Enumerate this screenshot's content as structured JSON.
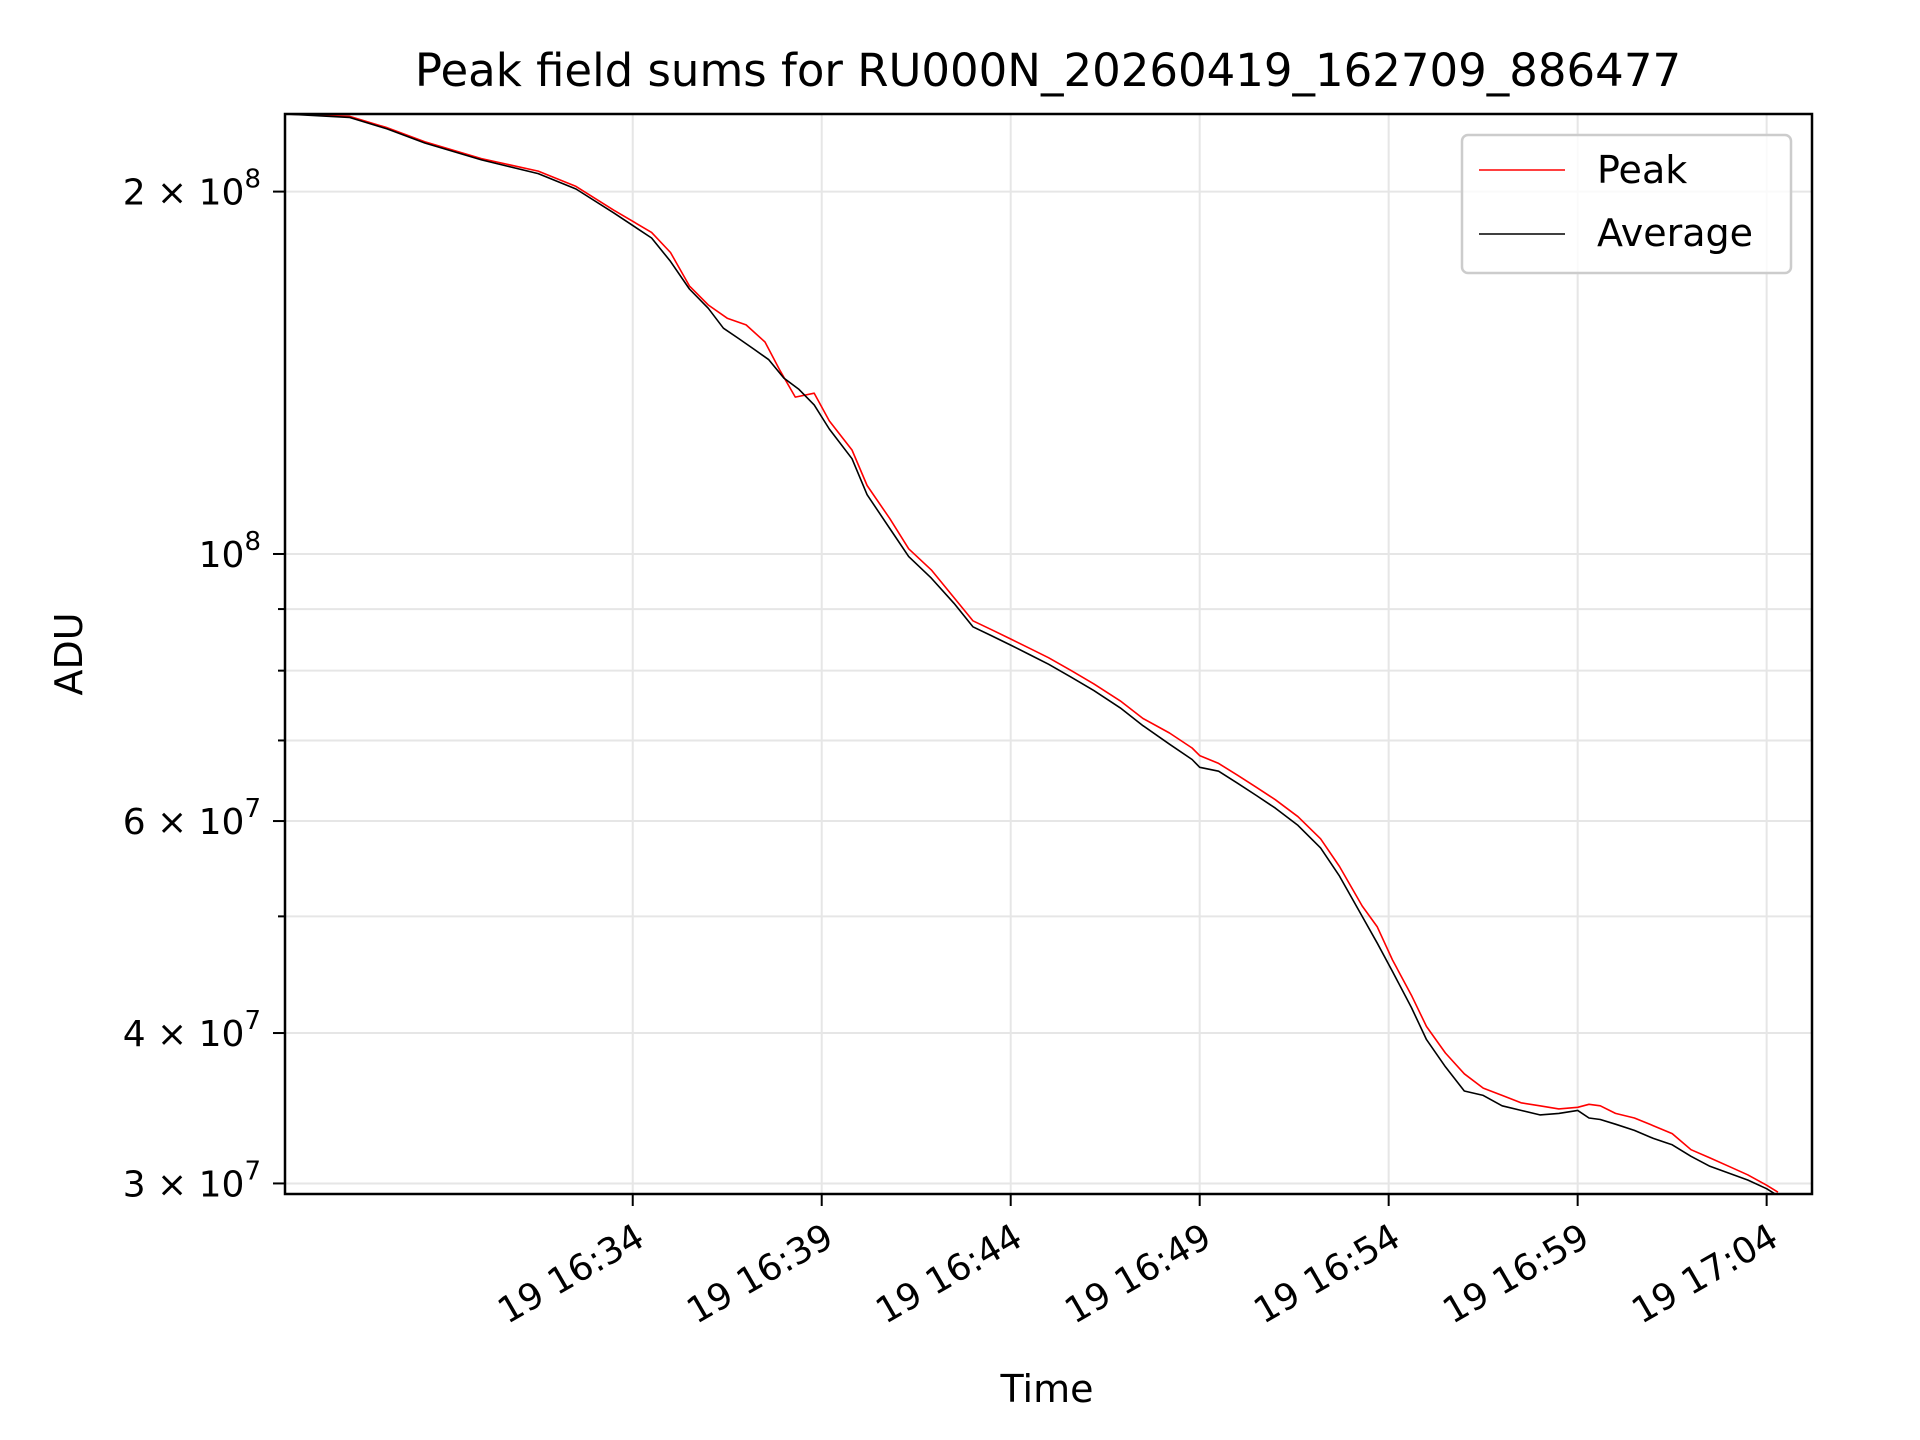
{
  "chart_data": {
    "type": "line",
    "title": "Peak field sums for RU000N_20260419_162709_886477",
    "xlabel": "Time",
    "ylabel": "ADU",
    "yscale": "log",
    "xlim_minutes": [
      -9.2,
      31.2
    ],
    "ylim": [
      29400000,
      232000000
    ],
    "grid": true,
    "legend_position": "top-right",
    "x_ticks": [
      {
        "minute": 0,
        "label": "19 16:34"
      },
      {
        "minute": 5,
        "label": "19 16:39"
      },
      {
        "minute": 10,
        "label": "19 16:44"
      },
      {
        "minute": 15,
        "label": "19 16:49"
      },
      {
        "minute": 20,
        "label": "19 16:54"
      },
      {
        "minute": 25,
        "label": "19 16:59"
      },
      {
        "minute": 30,
        "label": "19 17:04"
      }
    ],
    "y_major_ticks": [
      {
        "value": 30000000,
        "mantissa": "3 × 10",
        "exp": "7"
      },
      {
        "value": 40000000,
        "mantissa": "4 × 10",
        "exp": "7"
      },
      {
        "value": 60000000,
        "mantissa": "6 × 10",
        "exp": "7"
      },
      {
        "value": 100000000,
        "mantissa": "10",
        "exp": "8"
      },
      {
        "value": 200000000,
        "mantissa": "2 × 10",
        "exp": "8"
      }
    ],
    "y_minor_ticks": [
      50000000,
      70000000,
      80000000,
      90000000
    ],
    "series": [
      {
        "name": "Peak",
        "color": "#ff0000",
        "points": [
          [
            -9.2,
            232000000
          ],
          [
            -7.5,
            231000000
          ],
          [
            -6.5,
            226000000
          ],
          [
            -5.5,
            220000000
          ],
          [
            -4.0,
            213000000
          ],
          [
            -2.5,
            208000000
          ],
          [
            -1.5,
            202000000
          ],
          [
            -0.5,
            193000000
          ],
          [
            0.5,
            185000000
          ],
          [
            1.0,
            178000000
          ],
          [
            1.5,
            167000000
          ],
          [
            2.0,
            161000000
          ],
          [
            2.5,
            157000000
          ],
          [
            3.0,
            155000000
          ],
          [
            3.5,
            150000000
          ],
          [
            3.9,
            142000000
          ],
          [
            4.3,
            135000000
          ],
          [
            4.8,
            136000000
          ],
          [
            5.2,
            129000000
          ],
          [
            5.8,
            122000000
          ],
          [
            6.2,
            114000000
          ],
          [
            6.8,
            107000000
          ],
          [
            7.3,
            101000000
          ],
          [
            7.9,
            97000000
          ],
          [
            8.5,
            92000000
          ],
          [
            9.0,
            88000000
          ],
          [
            9.5,
            86500000
          ],
          [
            10.0,
            85000000
          ],
          [
            10.5,
            83500000
          ],
          [
            11.0,
            82000000
          ],
          [
            11.6,
            80000000
          ],
          [
            12.2,
            78000000
          ],
          [
            12.9,
            75500000
          ],
          [
            13.5,
            73000000
          ],
          [
            14.2,
            71000000
          ],
          [
            14.8,
            69000000
          ],
          [
            15.0,
            68000000
          ],
          [
            15.5,
            67000000
          ],
          [
            16.0,
            65500000
          ],
          [
            16.5,
            64000000
          ],
          [
            17.0,
            62500000
          ],
          [
            17.6,
            60500000
          ],
          [
            18.2,
            58000000
          ],
          [
            18.7,
            55000000
          ],
          [
            19.3,
            51000000
          ],
          [
            19.7,
            49000000
          ],
          [
            20.1,
            46000000
          ],
          [
            20.6,
            43000000
          ],
          [
            21.0,
            40500000
          ],
          [
            21.5,
            38500000
          ],
          [
            22.0,
            37000000
          ],
          [
            22.5,
            36000000
          ],
          [
            23.0,
            35500000
          ],
          [
            23.5,
            35000000
          ],
          [
            24.0,
            34800000
          ],
          [
            24.5,
            34600000
          ],
          [
            25.0,
            34700000
          ],
          [
            25.3,
            34900000
          ],
          [
            25.6,
            34800000
          ],
          [
            26.0,
            34300000
          ],
          [
            26.5,
            34000000
          ],
          [
            27.0,
            33500000
          ],
          [
            27.5,
            33000000
          ],
          [
            28.0,
            32000000
          ],
          [
            28.5,
            31500000
          ],
          [
            29.0,
            31000000
          ],
          [
            29.5,
            30500000
          ],
          [
            30.0,
            29900000
          ],
          [
            30.3,
            29500000
          ]
        ]
      },
      {
        "name": "Average",
        "color": "#000000",
        "points": [
          [
            -9.2,
            232000000
          ],
          [
            -7.5,
            230500000
          ],
          [
            -6.5,
            225500000
          ],
          [
            -5.5,
            219500000
          ],
          [
            -4.0,
            212500000
          ],
          [
            -2.5,
            207000000
          ],
          [
            -1.5,
            201000000
          ],
          [
            -0.5,
            192000000
          ],
          [
            0.5,
            183000000
          ],
          [
            1.0,
            175000000
          ],
          [
            1.5,
            166000000
          ],
          [
            2.0,
            160000000
          ],
          [
            2.4,
            154000000
          ],
          [
            2.8,
            151000000
          ],
          [
            3.2,
            148000000
          ],
          [
            3.6,
            145000000
          ],
          [
            4.0,
            140000000
          ],
          [
            4.4,
            137000000
          ],
          [
            4.8,
            133000000
          ],
          [
            5.2,
            127000000
          ],
          [
            5.8,
            120000000
          ],
          [
            6.2,
            112000000
          ],
          [
            6.8,
            105000000
          ],
          [
            7.3,
            99500000
          ],
          [
            7.9,
            95500000
          ],
          [
            8.5,
            91000000
          ],
          [
            9.0,
            87000000
          ],
          [
            9.5,
            85500000
          ],
          [
            10.0,
            84000000
          ],
          [
            10.5,
            82500000
          ],
          [
            11.0,
            81000000
          ],
          [
            11.6,
            79000000
          ],
          [
            12.2,
            77000000
          ],
          [
            12.9,
            74500000
          ],
          [
            13.5,
            72000000
          ],
          [
            14.2,
            69500000
          ],
          [
            14.8,
            67500000
          ],
          [
            15.0,
            66500000
          ],
          [
            15.5,
            66000000
          ],
          [
            16.0,
            64500000
          ],
          [
            16.5,
            63000000
          ],
          [
            17.0,
            61500000
          ],
          [
            17.6,
            59500000
          ],
          [
            18.2,
            57000000
          ],
          [
            18.7,
            54000000
          ],
          [
            19.3,
            50000000
          ],
          [
            19.7,
            47500000
          ],
          [
            20.1,
            45000000
          ],
          [
            20.6,
            42000000
          ],
          [
            21.0,
            39500000
          ],
          [
            21.5,
            37500000
          ],
          [
            22.0,
            35800000
          ],
          [
            22.5,
            35500000
          ],
          [
            23.0,
            34800000
          ],
          [
            23.5,
            34500000
          ],
          [
            24.0,
            34200000
          ],
          [
            24.5,
            34300000
          ],
          [
            25.0,
            34500000
          ],
          [
            25.3,
            34000000
          ],
          [
            25.6,
            33900000
          ],
          [
            26.0,
            33600000
          ],
          [
            26.5,
            33200000
          ],
          [
            27.0,
            32700000
          ],
          [
            27.5,
            32300000
          ],
          [
            28.0,
            31600000
          ],
          [
            28.5,
            31000000
          ],
          [
            29.0,
            30600000
          ],
          [
            29.5,
            30200000
          ],
          [
            30.0,
            29700000
          ],
          [
            30.3,
            29300000
          ]
        ]
      }
    ]
  }
}
